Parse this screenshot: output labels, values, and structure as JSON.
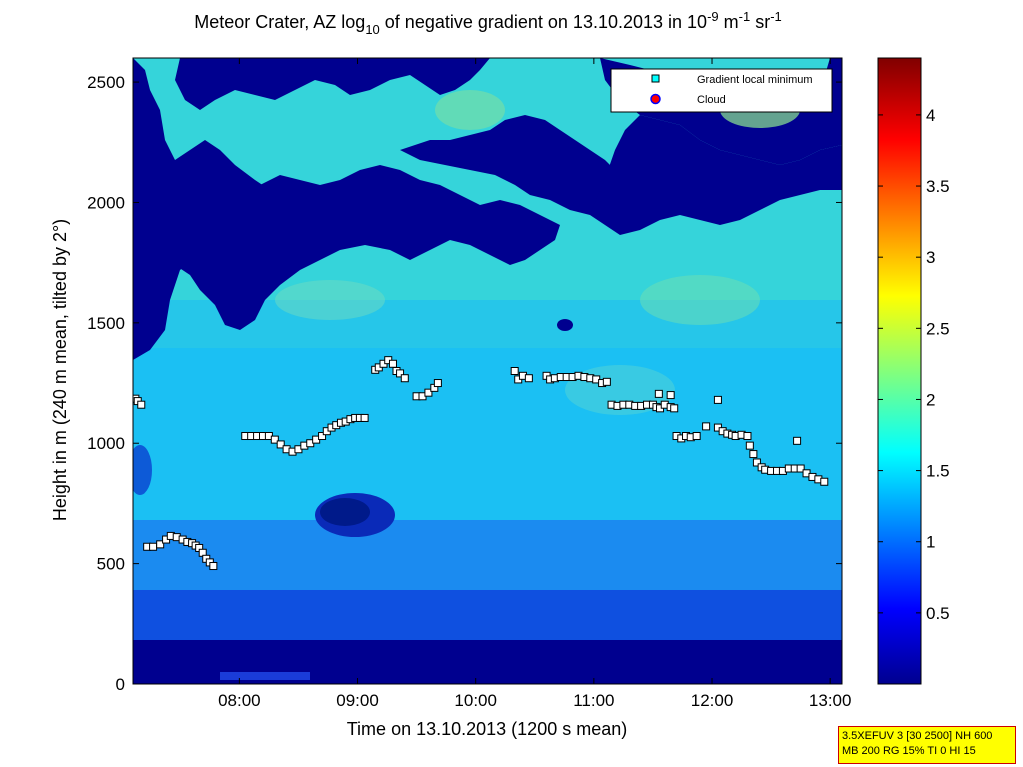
{
  "chart_data": {
    "type": "heatmap",
    "title": "Meteor Crater, AZ log10 of negative gradient on 13.10.2013 in 10-9 m-1 sr-1",
    "title_parts": {
      "main": "Meteor Crater, AZ log",
      "sub": "10",
      "mid": " of negative gradient on 13.10.2013 in 10",
      "exp1": "-9",
      "unit1": " m",
      "exp2": "-1",
      "unit2": " sr",
      "exp3": "-1"
    },
    "xlabel": "Time on 13.10.2013 (1200 s mean)",
    "ylabel": "Height in m (240 m mean, tilted by 2°)",
    "xlim_hours": [
      7.1,
      13.1
    ],
    "ylim": [
      0,
      2600
    ],
    "x_ticks": [
      {
        "value": 8,
        "label": "08:00"
      },
      {
        "value": 9,
        "label": "09:00"
      },
      {
        "value": 10,
        "label": "10:00"
      },
      {
        "value": 11,
        "label": "11:00"
      },
      {
        "value": 12,
        "label": "12:00"
      },
      {
        "value": 13,
        "label": "13:00"
      }
    ],
    "y_ticks": [
      {
        "value": 0,
        "label": "0"
      },
      {
        "value": 500,
        "label": "500"
      },
      {
        "value": 1000,
        "label": "1000"
      },
      {
        "value": 1500,
        "label": "1500"
      },
      {
        "value": 2000,
        "label": "2000"
      },
      {
        "value": 2500,
        "label": "2500"
      }
    ],
    "colorbar": {
      "range": [
        0,
        4.4
      ],
      "colormap": "jet",
      "ticks": [
        {
          "value": 0.5,
          "label": "0.5"
        },
        {
          "value": 1.0,
          "label": "1"
        },
        {
          "value": 1.5,
          "label": "1.5"
        },
        {
          "value": 2.0,
          "label": "2"
        },
        {
          "value": 2.5,
          "label": "2.5"
        },
        {
          "value": 3.0,
          "label": "3"
        },
        {
          "value": 3.5,
          "label": "3.5"
        },
        {
          "value": 4.0,
          "label": "4"
        }
      ]
    },
    "legend": {
      "position": "top-right",
      "entries": [
        {
          "label": "Gradient local minimum",
          "marker": "square",
          "color": "#00ffff"
        },
        {
          "label": "Cloud",
          "marker": "circle",
          "color": "#ff0000",
          "edge": "#0000ff"
        }
      ]
    },
    "series": [
      {
        "name": "Gradient local minimum",
        "marker": "square",
        "points": [
          [
            7.12,
            1185
          ],
          [
            7.14,
            1175
          ],
          [
            7.17,
            1160
          ],
          [
            7.22,
            570
          ],
          [
            7.27,
            570
          ],
          [
            7.33,
            580
          ],
          [
            7.38,
            600
          ],
          [
            7.42,
            615
          ],
          [
            7.47,
            610
          ],
          [
            7.52,
            600
          ],
          [
            7.56,
            590
          ],
          [
            7.6,
            585
          ],
          [
            7.63,
            575
          ],
          [
            7.66,
            565
          ],
          [
            7.69,
            545
          ],
          [
            7.72,
            520
          ],
          [
            7.75,
            505
          ],
          [
            7.78,
            490
          ],
          [
            8.05,
            1030
          ],
          [
            8.1,
            1030
          ],
          [
            8.15,
            1030
          ],
          [
            8.2,
            1030
          ],
          [
            8.25,
            1030
          ],
          [
            8.3,
            1015
          ],
          [
            8.35,
            995
          ],
          [
            8.4,
            975
          ],
          [
            8.45,
            965
          ],
          [
            8.5,
            975
          ],
          [
            8.55,
            990
          ],
          [
            8.6,
            1000
          ],
          [
            8.65,
            1015
          ],
          [
            8.7,
            1030
          ],
          [
            8.74,
            1050
          ],
          [
            8.78,
            1065
          ],
          [
            8.82,
            1075
          ],
          [
            8.86,
            1085
          ],
          [
            8.9,
            1090
          ],
          [
            8.94,
            1100
          ],
          [
            8.98,
            1105
          ],
          [
            9.02,
            1105
          ],
          [
            9.06,
            1105
          ],
          [
            9.15,
            1305
          ],
          [
            9.18,
            1315
          ],
          [
            9.22,
            1330
          ],
          [
            9.26,
            1345
          ],
          [
            9.3,
            1330
          ],
          [
            9.33,
            1300
          ],
          [
            9.36,
            1290
          ],
          [
            9.4,
            1270
          ],
          [
            9.5,
            1195
          ],
          [
            9.55,
            1195
          ],
          [
            9.6,
            1210
          ],
          [
            9.65,
            1230
          ],
          [
            9.68,
            1250
          ],
          [
            10.33,
            1300
          ],
          [
            10.36,
            1265
          ],
          [
            10.4,
            1280
          ],
          [
            10.45,
            1270
          ],
          [
            10.6,
            1280
          ],
          [
            10.63,
            1265
          ],
          [
            10.67,
            1270
          ],
          [
            10.72,
            1275
          ],
          [
            10.77,
            1275
          ],
          [
            10.82,
            1275
          ],
          [
            10.87,
            1280
          ],
          [
            10.92,
            1275
          ],
          [
            10.97,
            1270
          ],
          [
            11.02,
            1265
          ],
          [
            11.07,
            1250
          ],
          [
            11.11,
            1255
          ],
          [
            11.15,
            1160
          ],
          [
            11.2,
            1155
          ],
          [
            11.25,
            1160
          ],
          [
            11.3,
            1160
          ],
          [
            11.35,
            1155
          ],
          [
            11.4,
            1155
          ],
          [
            11.45,
            1160
          ],
          [
            11.5,
            1160
          ],
          [
            11.53,
            1150
          ],
          [
            11.56,
            1145
          ],
          [
            11.6,
            1160
          ],
          [
            11.65,
            1150
          ],
          [
            11.68,
            1145
          ],
          [
            11.55,
            1205
          ],
          [
            11.65,
            1200
          ],
          [
            11.7,
            1030
          ],
          [
            11.74,
            1020
          ],
          [
            11.78,
            1030
          ],
          [
            11.82,
            1025
          ],
          [
            11.87,
            1030
          ],
          [
            11.95,
            1070
          ],
          [
            12.05,
            1180
          ],
          [
            12.05,
            1065
          ],
          [
            12.09,
            1050
          ],
          [
            12.13,
            1040
          ],
          [
            12.17,
            1035
          ],
          [
            12.2,
            1030
          ],
          [
            12.25,
            1035
          ],
          [
            12.3,
            1030
          ],
          [
            12.32,
            990
          ],
          [
            12.35,
            955
          ],
          [
            12.38,
            920
          ],
          [
            12.42,
            900
          ],
          [
            12.45,
            890
          ],
          [
            12.5,
            885
          ],
          [
            12.55,
            885
          ],
          [
            12.6,
            885
          ],
          [
            12.65,
            895
          ],
          [
            12.7,
            895
          ],
          [
            12.75,
            895
          ],
          [
            12.72,
            1010
          ],
          [
            12.8,
            875
          ],
          [
            12.85,
            860
          ],
          [
            12.9,
            850
          ],
          [
            12.95,
            840
          ]
        ]
      },
      {
        "name": "Cloud",
        "marker": "circle",
        "points": []
      }
    ]
  },
  "info_box": {
    "line1": "3.5XEFUV 3 [30 2500] NH 600",
    "line2": "MB 200 RG 15% TI 0 HI 15"
  }
}
